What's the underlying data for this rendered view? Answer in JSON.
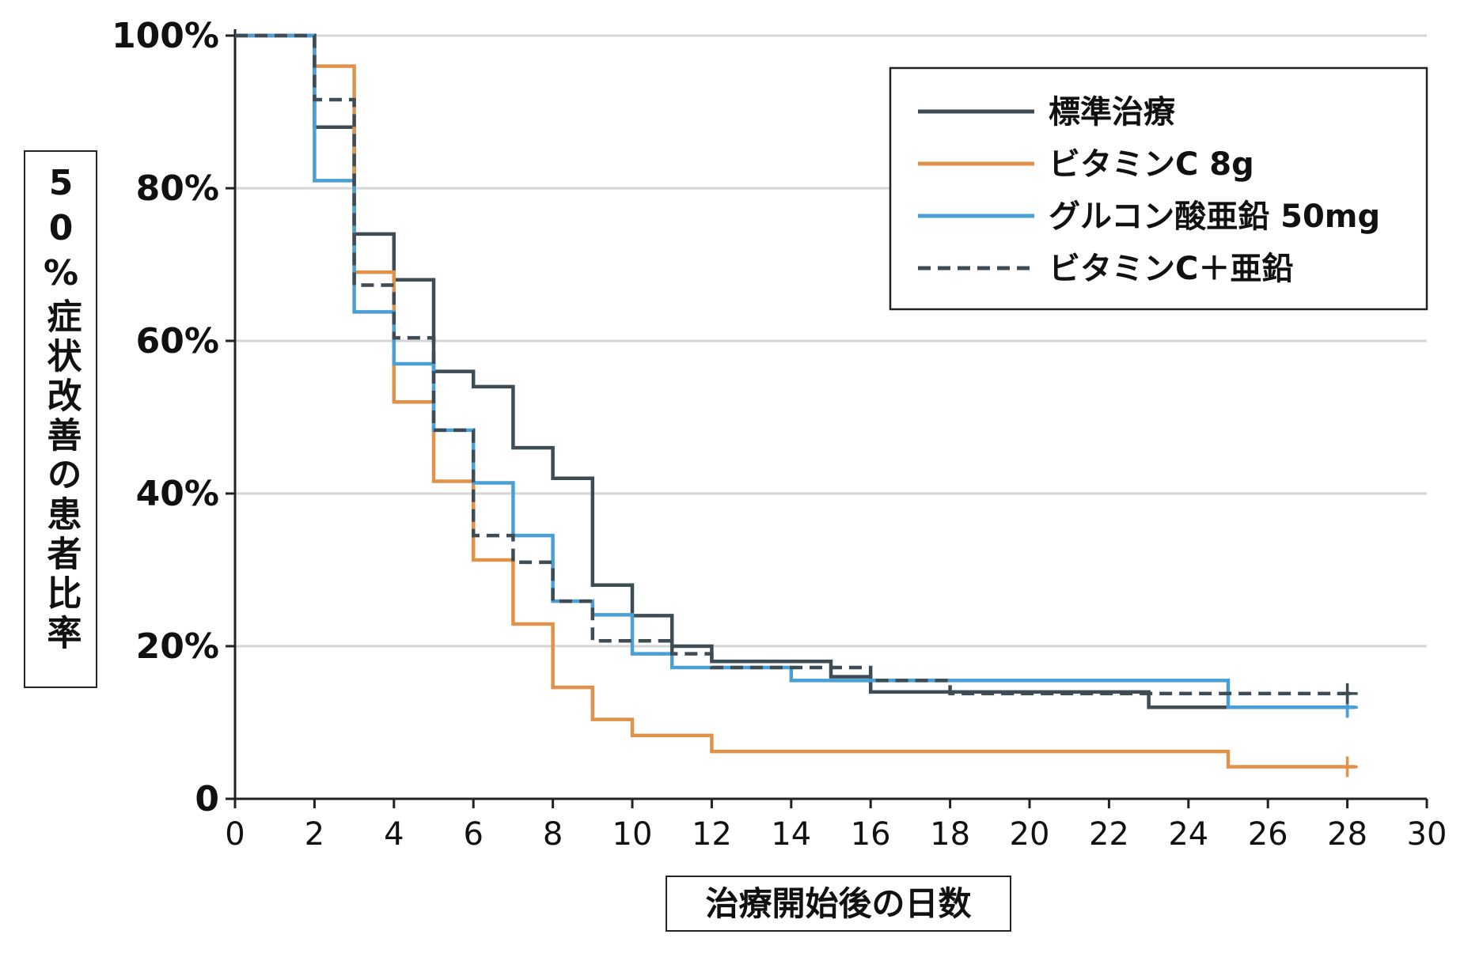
{
  "chart_data": {
    "type": "line",
    "step": "post",
    "xlabel": "治療開始後の日数",
    "ylabel": "50%症状改善の患者比率",
    "xlim": [
      0,
      30
    ],
    "ylim": [
      0,
      100
    ],
    "xticks": [
      "0",
      "2",
      "4",
      "6",
      "8",
      "10",
      "12",
      "14",
      "16",
      "18",
      "20",
      "22",
      "24",
      "26",
      "28",
      "30"
    ],
    "yticks": [
      {
        "value": 0,
        "label": "0"
      },
      {
        "value": 20,
        "label": "20%"
      },
      {
        "value": 40,
        "label": "40%"
      },
      {
        "value": 60,
        "label": "60%"
      },
      {
        "value": 80,
        "label": "80%"
      },
      {
        "value": 100,
        "label": "100%"
      }
    ],
    "grid": "horizontal",
    "legend_position": "top-right",
    "series": [
      {
        "name": "標準治療",
        "color": "#3d4c55",
        "style": "solid",
        "x": [
          0,
          2,
          3,
          4,
          5,
          6,
          7,
          8,
          9,
          10,
          11,
          12,
          15,
          16,
          18,
          23,
          25,
          28.2
        ],
        "y": [
          100,
          88,
          74,
          68,
          56,
          54,
          46,
          42,
          28,
          24,
          20,
          18,
          16,
          14,
          14,
          12,
          12,
          12
        ],
        "censor_x": 28
      },
      {
        "name": "ビタミンC 8g",
        "color": "#e0924a",
        "style": "solid",
        "x": [
          0,
          2,
          3,
          4,
          5,
          6,
          7,
          8,
          9,
          10,
          12,
          25,
          28.2
        ],
        "y": [
          100,
          96,
          69,
          52,
          41.6,
          31.3,
          22.9,
          14.6,
          10.4,
          8.3,
          6.2,
          4.2,
          4.2
        ],
        "censor_x": 28
      },
      {
        "name": "グルコン酸亜鉛 50mg",
        "color": "#4a9fd6",
        "style": "solid",
        "x": [
          0,
          2,
          3,
          4,
          5,
          6,
          7,
          8,
          9,
          10,
          11,
          14,
          16,
          25,
          28.2
        ],
        "y": [
          100,
          81,
          63.8,
          57,
          48.3,
          41.4,
          34.5,
          25.9,
          24.1,
          19,
          17.2,
          15.5,
          15.5,
          12,
          12
        ],
        "censor_x": 28
      },
      {
        "name": "ビタミンC＋亜鉛",
        "color": "#3d4c55",
        "style": "dashed",
        "x": [
          0,
          2,
          3,
          4,
          5,
          6,
          7,
          8,
          9,
          11,
          12,
          16,
          18,
          28.2
        ],
        "y": [
          100,
          91.6,
          67.3,
          60.4,
          48.3,
          34.5,
          31,
          25.9,
          20.7,
          19,
          17.2,
          15.5,
          13.8,
          13.8
        ],
        "censor_x": 28
      }
    ]
  }
}
